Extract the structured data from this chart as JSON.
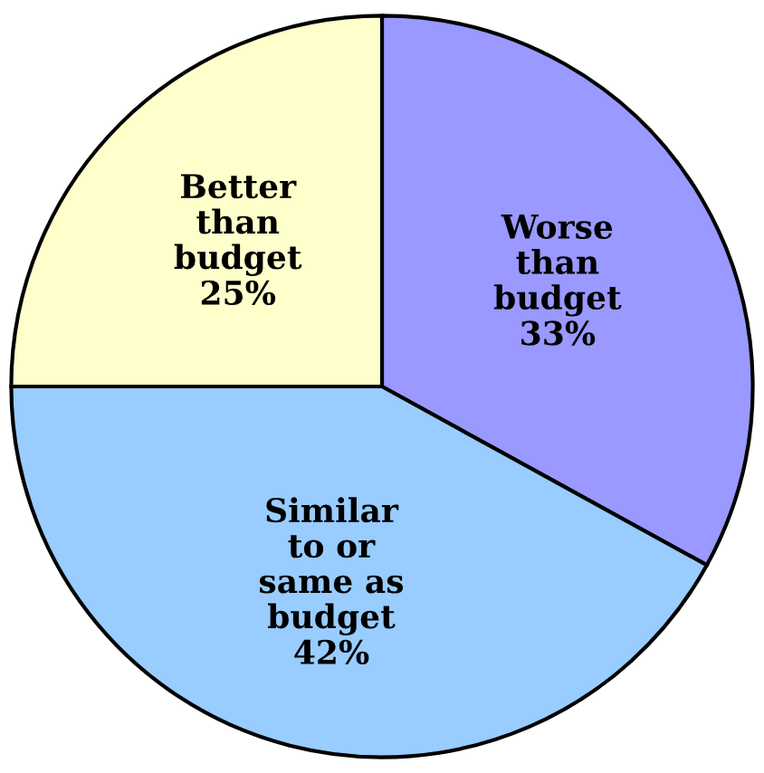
{
  "chart_data": {
    "type": "pie",
    "categories": [
      "Worse\nthan\nbudget",
      "Similar\nto or\nsame as\nbudget",
      "Better\nthan\nbudget"
    ],
    "values": [
      33,
      42,
      25
    ],
    "value_labels": [
      "33%",
      "42%",
      "25%"
    ],
    "colors": [
      "#9999ff",
      "#99ccff",
      "#ffffcc"
    ],
    "legend": false
  }
}
